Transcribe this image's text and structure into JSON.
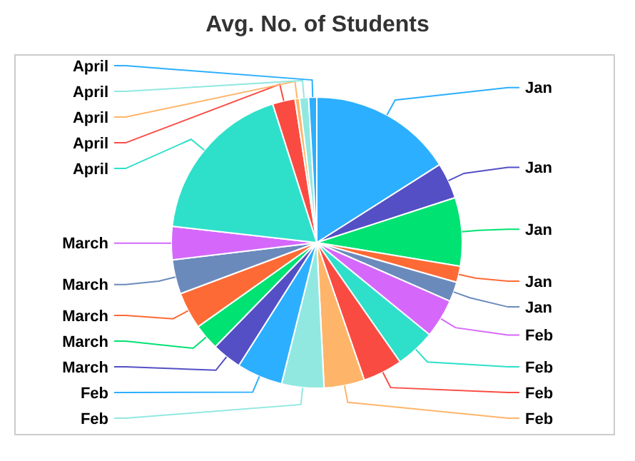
{
  "chart_data": {
    "type": "pie",
    "title": "Avg. No. of Students",
    "categories": [
      "Jan",
      "Jan",
      "Jan",
      "Jan",
      "Jan",
      "Feb",
      "Feb",
      "Feb",
      "Feb",
      "Feb",
      "Feb",
      "March",
      "March",
      "March",
      "March",
      "March",
      "April",
      "April",
      "April",
      "April",
      "April"
    ],
    "values": [
      16.0,
      4.0,
      7.6,
      1.8,
      2.2,
      4.3,
      4.4,
      4.4,
      4.5,
      4.7,
      5.1,
      3.3,
      2.9,
      4.1,
      3.8,
      3.7,
      18.3,
      2.5,
      0.5,
      1.0,
      0.9
    ],
    "colors": [
      "#2caffe",
      "#544fc5",
      "#00e272",
      "#fe6a35",
      "#6b8abc",
      "#d568fb",
      "#2ee0ca",
      "#fa4b42",
      "#feb56a",
      "#91e8e1",
      "#2caffe",
      "#544fc5",
      "#00e272",
      "#fe6a35",
      "#6b8abc",
      "#d568fb",
      "#2ee0ca",
      "#fa4b42",
      "#feb56a",
      "#91e8e1",
      "#2caffe"
    ]
  }
}
